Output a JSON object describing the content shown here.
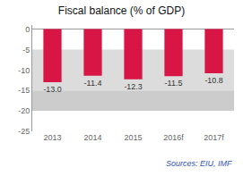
{
  "chart_data": {
    "type": "bar",
    "title": "Fiscal balance (% of GDP)",
    "categories": [
      "2013",
      "2014",
      "2015",
      "2016f",
      "2017f"
    ],
    "values": [
      -13.0,
      -11.4,
      -12.3,
      -11.5,
      -10.8
    ],
    "value_labels": [
      "-13.0",
      "-11.4",
      "-12.3",
      "-11.5",
      "-10.8"
    ],
    "data_labels": true,
    "color": "#d81645",
    "bands": [
      {
        "from": -5,
        "to": -15,
        "color": "#dcdcdc"
      },
      {
        "from": -15,
        "to": -20,
        "color": "#cccccc"
      }
    ],
    "ylim": [
      -25,
      1
    ],
    "yticks": [
      0,
      -5,
      -10,
      -15,
      -20,
      -25
    ],
    "grid": false,
    "annotation": "Sources: EIU, IMF"
  }
}
